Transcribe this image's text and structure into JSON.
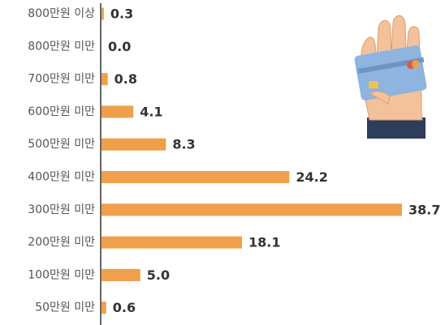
{
  "chart_data": {
    "type": "bar",
    "orientation": "horizontal",
    "categories": [
      "800만원 이상",
      "800만원 미만",
      "700만원 미만",
      "600만원 미만",
      "500만원 미만",
      "400만원 미만",
      "300만원 미만",
      "200만원 미만",
      "100만원 미만",
      "50만원 미만"
    ],
    "values": [
      0.3,
      0.0,
      0.8,
      4.1,
      8.3,
      24.2,
      38.7,
      18.1,
      5.0,
      0.6
    ],
    "value_labels": [
      "0.3",
      "0.0",
      "0.8",
      "4.1",
      "8.3",
      "24.2",
      "38.7",
      "18.1",
      "5.0",
      "0.6"
    ],
    "color": "#f0a04b"
  }
}
